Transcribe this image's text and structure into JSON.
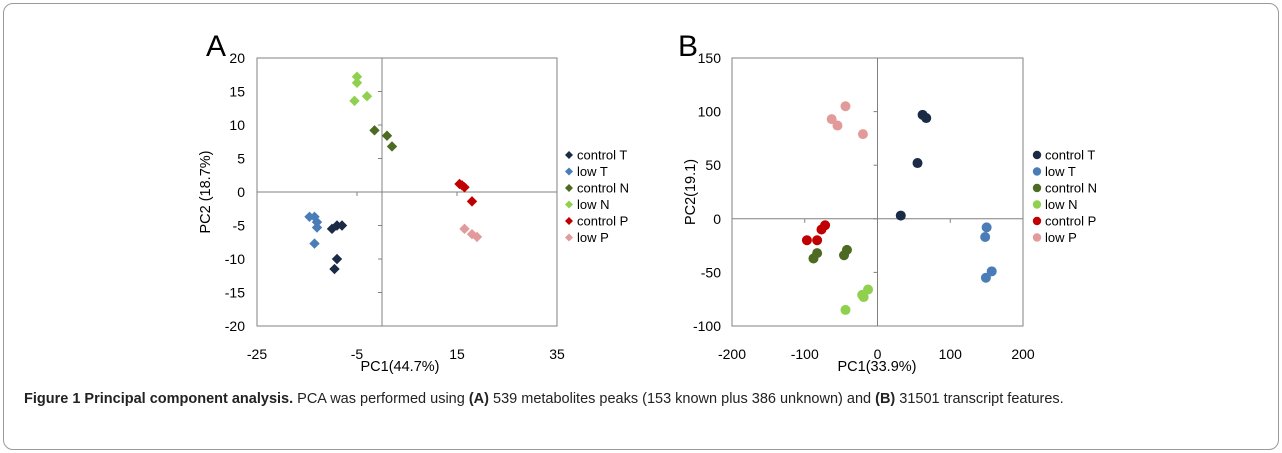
{
  "chart_data": [
    {
      "type": "scatter",
      "panel_label": "A",
      "xlabel": "PC1(44.7%)",
      "ylabel": "PC2 (18.7%)",
      "xlim": [
        -25,
        35
      ],
      "ylim": [
        -20,
        20
      ],
      "xticks": [
        -25,
        -5,
        15,
        35
      ],
      "yticks": [
        20,
        15,
        10,
        5,
        0,
        -5,
        -10,
        -15,
        -20
      ],
      "marker": "diamond",
      "legend": "right",
      "series": [
        {
          "name": "control T",
          "color": "#1b2a45",
          "points": [
            [
              -10,
              -5.5
            ],
            [
              -9,
              -5
            ],
            [
              -8,
              -5
            ],
            [
              -9,
              -10
            ],
            [
              -9.5,
              -11.5
            ]
          ]
        },
        {
          "name": "low T",
          "color": "#4a7db8",
          "points": [
            [
              -14.5,
              -3.7
            ],
            [
              -13.5,
              -3.7
            ],
            [
              -13,
              -4.5
            ],
            [
              -13,
              -5.3
            ],
            [
              -13.5,
              -7.7
            ]
          ]
        },
        {
          "name": "control N",
          "color": "#4d6a22",
          "points": [
            [
              -1.5,
              9.2
            ],
            [
              1,
              8.4
            ],
            [
              2,
              6.8
            ]
          ]
        },
        {
          "name": "low N",
          "color": "#8fd14f",
          "points": [
            [
              -5,
              17.2
            ],
            [
              -5,
              16.3
            ],
            [
              -5.5,
              13.6
            ],
            [
              -3,
              14.3
            ]
          ]
        },
        {
          "name": "control P",
          "color": "#c00000",
          "points": [
            [
              15.5,
              1.2
            ],
            [
              16,
              1.0
            ],
            [
              16.5,
              0.7
            ],
            [
              18,
              -1.4
            ]
          ]
        },
        {
          "name": "low P",
          "color": "#e29a9a",
          "points": [
            [
              16.5,
              -5.5
            ],
            [
              18,
              -6.3
            ],
            [
              19,
              -6.7
            ]
          ]
        }
      ]
    },
    {
      "type": "scatter",
      "panel_label": "B",
      "xlabel": "PC1(33.9%)",
      "ylabel": "PC2(19.1)",
      "xlim": [
        -200,
        200
      ],
      "ylim": [
        -100,
        150
      ],
      "xticks": [
        -200,
        -100,
        0,
        100,
        200
      ],
      "yticks": [
        150,
        100,
        50,
        0,
        -50,
        -100
      ],
      "marker": "circle",
      "legend": "right",
      "series": [
        {
          "name": "control T",
          "color": "#1b2a45",
          "points": [
            [
              32,
              3
            ],
            [
              55,
              52
            ],
            [
              62,
              97
            ],
            [
              67,
              94
            ]
          ]
        },
        {
          "name": "low T",
          "color": "#4a7db8",
          "points": [
            [
              150,
              -8
            ],
            [
              148,
              -17
            ],
            [
              157,
              -49
            ],
            [
              149,
              -55
            ]
          ]
        },
        {
          "name": "control N",
          "color": "#4d6a22",
          "points": [
            [
              -88,
              -37
            ],
            [
              -83,
              -32
            ],
            [
              -42,
              -29
            ],
            [
              -46,
              -34
            ]
          ]
        },
        {
          "name": "low N",
          "color": "#8fd14f",
          "points": [
            [
              -13,
              -66
            ],
            [
              -21,
              -71
            ],
            [
              -19,
              -73
            ],
            [
              -44,
              -85
            ]
          ]
        },
        {
          "name": "control P",
          "color": "#c00000",
          "points": [
            [
              -97,
              -20
            ],
            [
              -83,
              -20
            ],
            [
              -77,
              -10
            ],
            [
              -72,
              -6
            ]
          ]
        },
        {
          "name": "low P",
          "color": "#e29a9a",
          "points": [
            [
              -63,
              93
            ],
            [
              -55,
              87
            ],
            [
              -44,
              105
            ],
            [
              -20,
              79
            ]
          ]
        }
      ]
    }
  ],
  "caption": {
    "title": "Figure 1 Principal component analysis.",
    "t1": " PCA was performed using ",
    "ref_a": "(A)",
    "t2": " 539 metabolites peaks (153 known plus 386 unknown) and ",
    "ref_b": "(B)",
    "t3": " 31501 transcript features."
  }
}
